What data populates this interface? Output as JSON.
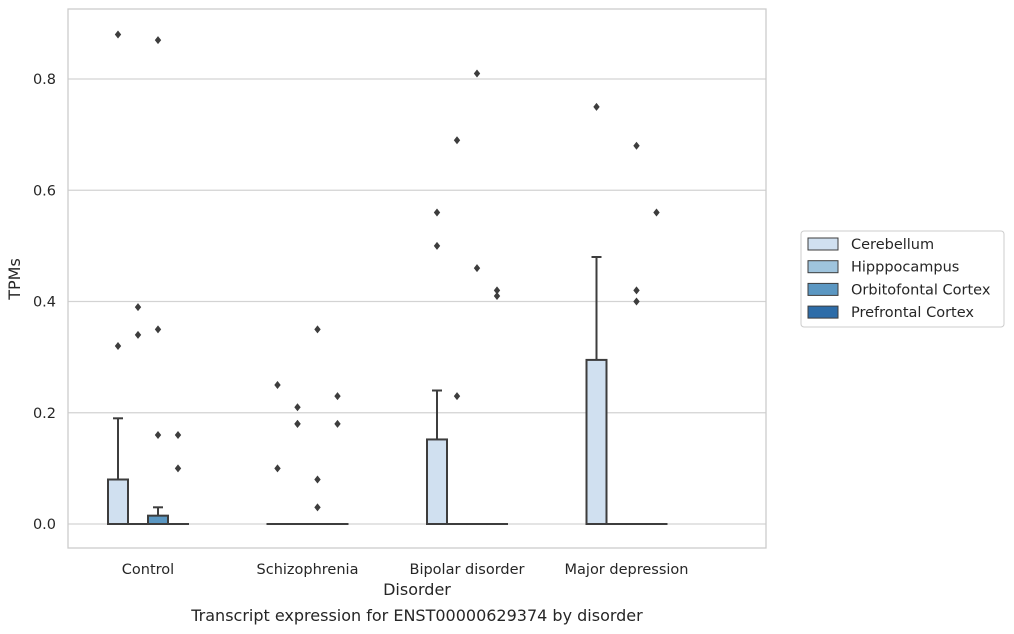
{
  "chart_data": {
    "type": "box",
    "xlabel": "Disorder",
    "ylabel": "TPMs",
    "ylim": [
      -0.043,
      0.927
    ],
    "yticks": [
      0.0,
      0.2,
      0.4,
      0.6,
      0.8
    ],
    "ytick_labels": [
      "0.0",
      "0.2",
      "0.4",
      "0.6",
      "0.8"
    ],
    "grid": "horizontal",
    "legend_position": "right",
    "categories": [
      "Control",
      "Schizophrenia",
      "Bipolar disorder",
      "Major depression"
    ],
    "series": [
      {
        "name": "Cerebellum",
        "color": "#d0e0f0",
        "boxes": [
          {
            "q1": 0.0,
            "median": 0.0,
            "q3": 0.08,
            "whisker_low": 0.0,
            "whisker_high": 0.19,
            "outliers": [
              0.88,
              0.32
            ]
          },
          {
            "q1": 0.0,
            "median": 0.0,
            "q3": 0.0,
            "whisker_low": 0.0,
            "whisker_high": 0.0,
            "outliers": [
              0.25,
              0.1
            ]
          },
          {
            "q1": 0.0,
            "median": 0.0,
            "q3": 0.152,
            "whisker_low": 0.0,
            "whisker_high": 0.24,
            "outliers": [
              0.56,
              0.5
            ]
          },
          {
            "q1": 0.0,
            "median": 0.0,
            "q3": 0.295,
            "whisker_low": 0.0,
            "whisker_high": 0.48,
            "outliers": [
              0.75
            ]
          }
        ]
      },
      {
        "name": "Hipppocampus",
        "color": "#9fc4dd",
        "boxes": [
          {
            "q1": 0.0,
            "median": 0.0,
            "q3": 0.0,
            "whisker_low": 0.0,
            "whisker_high": 0.0,
            "outliers": [
              0.39,
              0.34
            ]
          },
          {
            "q1": 0.0,
            "median": 0.0,
            "q3": 0.0,
            "whisker_low": 0.0,
            "whisker_high": 0.0,
            "outliers": [
              0.21,
              0.18,
              0.18
            ]
          },
          {
            "q1": 0.0,
            "median": 0.0,
            "q3": 0.0,
            "whisker_low": 0.0,
            "whisker_high": 0.0,
            "outliers": [
              0.69,
              0.23
            ]
          },
          {
            "q1": 0.0,
            "median": 0.0,
            "q3": 0.0,
            "whisker_low": 0.0,
            "whisker_high": 0.0,
            "outliers": []
          }
        ]
      },
      {
        "name": "Orbitofontal Cortex",
        "color": "#5b97c2",
        "boxes": [
          {
            "q1": 0.0,
            "median": 0.0,
            "q3": 0.015,
            "whisker_low": 0.0,
            "whisker_high": 0.03,
            "outliers": [
              0.87,
              0.35,
              0.16
            ]
          },
          {
            "q1": 0.0,
            "median": 0.0,
            "q3": 0.0,
            "whisker_low": 0.0,
            "whisker_high": 0.0,
            "outliers": [
              0.35,
              0.08,
              0.03
            ]
          },
          {
            "q1": 0.0,
            "median": 0.0,
            "q3": 0.0,
            "whisker_low": 0.0,
            "whisker_high": 0.0,
            "outliers": [
              0.81,
              0.46
            ]
          },
          {
            "q1": 0.0,
            "median": 0.0,
            "q3": 0.0,
            "whisker_low": 0.0,
            "whisker_high": 0.0,
            "outliers": [
              0.68,
              0.42,
              0.4
            ]
          }
        ]
      },
      {
        "name": "Prefrontal Cortex",
        "color": "#2d6ca8",
        "boxes": [
          {
            "q1": 0.0,
            "median": 0.0,
            "q3": 0.0,
            "whisker_low": 0.0,
            "whisker_high": 0.0,
            "outliers": [
              0.16,
              0.1
            ]
          },
          {
            "q1": 0.0,
            "median": 0.0,
            "q3": 0.0,
            "whisker_low": 0.0,
            "whisker_high": 0.0,
            "outliers": [
              0.23,
              0.18
            ]
          },
          {
            "q1": 0.0,
            "median": 0.0,
            "q3": 0.0,
            "whisker_low": 0.0,
            "whisker_high": 0.0,
            "outliers": [
              0.42,
              0.41
            ]
          },
          {
            "q1": 0.0,
            "median": 0.0,
            "q3": 0.0,
            "whisker_low": 0.0,
            "whisker_high": 0.0,
            "outliers": [
              0.56
            ]
          }
        ]
      }
    ]
  },
  "caption": "Transcript expression for ENST00000629374 by disorder"
}
